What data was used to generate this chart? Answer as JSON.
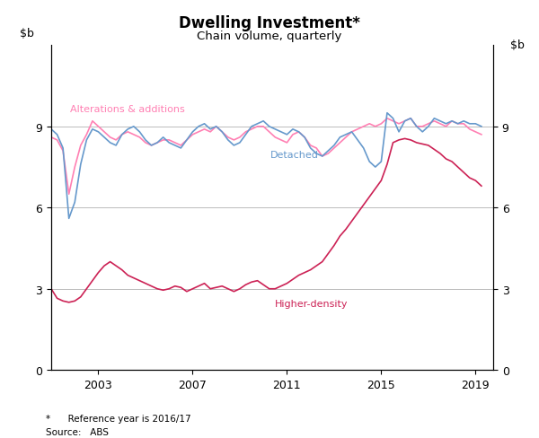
{
  "title": "Dwelling Investment*",
  "subtitle": "Chain volume, quarterly",
  "ylim": [
    0,
    12
  ],
  "yticks": [
    0,
    3,
    6,
    9
  ],
  "source_line1": "*      Reference year is 2016/17",
  "source_line2": "Source:   ABS",
  "xticks": [
    2003,
    2007,
    2011,
    2015,
    2019
  ],
  "xlim_start": 2001.0,
  "xlim_end": 2019.75,
  "alterations_color": "#ff80b3",
  "detached_color": "#6699cc",
  "higher_density_color": "#cc2255",
  "alterations_label": "Alterations & additions",
  "detached_label": "Detached",
  "higher_density_label": "Higher-density",
  "alterations_x": [
    2001.0,
    2001.25,
    2001.5,
    2001.75,
    2002.0,
    2002.25,
    2002.5,
    2002.75,
    2003.0,
    2003.25,
    2003.5,
    2003.75,
    2004.0,
    2004.25,
    2004.5,
    2004.75,
    2005.0,
    2005.25,
    2005.5,
    2005.75,
    2006.0,
    2006.25,
    2006.5,
    2006.75,
    2007.0,
    2007.25,
    2007.5,
    2007.75,
    2008.0,
    2008.25,
    2008.5,
    2008.75,
    2009.0,
    2009.25,
    2009.5,
    2009.75,
    2010.0,
    2010.25,
    2010.5,
    2010.75,
    2011.0,
    2011.25,
    2011.5,
    2011.75,
    2012.0,
    2012.25,
    2012.5,
    2012.75,
    2013.0,
    2013.25,
    2013.5,
    2013.75,
    2014.0,
    2014.25,
    2014.5,
    2014.75,
    2015.0,
    2015.25,
    2015.5,
    2015.75,
    2016.0,
    2016.25,
    2016.5,
    2016.75,
    2017.0,
    2017.25,
    2017.5,
    2017.75,
    2018.0,
    2018.25,
    2018.5,
    2018.75,
    2019.0,
    2019.25
  ],
  "alterations_y": [
    8.6,
    8.5,
    8.1,
    6.5,
    7.5,
    8.3,
    8.7,
    9.2,
    9.0,
    8.8,
    8.6,
    8.5,
    8.7,
    8.8,
    8.7,
    8.6,
    8.4,
    8.3,
    8.4,
    8.5,
    8.5,
    8.4,
    8.3,
    8.5,
    8.7,
    8.8,
    8.9,
    8.8,
    9.0,
    8.8,
    8.6,
    8.5,
    8.6,
    8.8,
    8.9,
    9.0,
    9.0,
    8.8,
    8.6,
    8.5,
    8.4,
    8.7,
    8.8,
    8.6,
    8.3,
    8.2,
    7.9,
    8.0,
    8.2,
    8.4,
    8.6,
    8.8,
    8.9,
    9.0,
    9.1,
    9.0,
    9.1,
    9.3,
    9.2,
    9.1,
    9.2,
    9.3,
    9.0,
    9.0,
    9.1,
    9.2,
    9.1,
    9.0,
    9.2,
    9.1,
    9.1,
    8.9,
    8.8,
    8.7
  ],
  "detached_x": [
    2001.0,
    2001.25,
    2001.5,
    2001.75,
    2002.0,
    2002.25,
    2002.5,
    2002.75,
    2003.0,
    2003.25,
    2003.5,
    2003.75,
    2004.0,
    2004.25,
    2004.5,
    2004.75,
    2005.0,
    2005.25,
    2005.5,
    2005.75,
    2006.0,
    2006.25,
    2006.5,
    2006.75,
    2007.0,
    2007.25,
    2007.5,
    2007.75,
    2008.0,
    2008.25,
    2008.5,
    2008.75,
    2009.0,
    2009.25,
    2009.5,
    2009.75,
    2010.0,
    2010.25,
    2010.5,
    2010.75,
    2011.0,
    2011.25,
    2011.5,
    2011.75,
    2012.0,
    2012.25,
    2012.5,
    2012.75,
    2013.0,
    2013.25,
    2013.5,
    2013.75,
    2014.0,
    2014.25,
    2014.5,
    2014.75,
    2015.0,
    2015.25,
    2015.5,
    2015.75,
    2016.0,
    2016.25,
    2016.5,
    2016.75,
    2017.0,
    2017.25,
    2017.5,
    2017.75,
    2018.0,
    2018.25,
    2018.5,
    2018.75,
    2019.0,
    2019.25
  ],
  "detached_y": [
    8.9,
    8.7,
    8.2,
    5.6,
    6.2,
    7.6,
    8.5,
    8.9,
    8.8,
    8.6,
    8.4,
    8.3,
    8.7,
    8.9,
    9.0,
    8.8,
    8.5,
    8.3,
    8.4,
    8.6,
    8.4,
    8.3,
    8.2,
    8.5,
    8.8,
    9.0,
    9.1,
    8.9,
    9.0,
    8.8,
    8.5,
    8.3,
    8.4,
    8.7,
    9.0,
    9.1,
    9.2,
    9.0,
    8.9,
    8.8,
    8.7,
    8.9,
    8.8,
    8.6,
    8.2,
    8.0,
    7.9,
    8.1,
    8.3,
    8.6,
    8.7,
    8.8,
    8.5,
    8.2,
    7.7,
    7.5,
    7.7,
    9.5,
    9.3,
    8.8,
    9.2,
    9.3,
    9.0,
    8.8,
    9.0,
    9.3,
    9.2,
    9.1,
    9.2,
    9.1,
    9.2,
    9.1,
    9.1,
    9.0
  ],
  "higher_density_x": [
    2001.0,
    2001.25,
    2001.5,
    2001.75,
    2002.0,
    2002.25,
    2002.5,
    2002.75,
    2003.0,
    2003.25,
    2003.5,
    2003.75,
    2004.0,
    2004.25,
    2004.5,
    2004.75,
    2005.0,
    2005.25,
    2005.5,
    2005.75,
    2006.0,
    2006.25,
    2006.5,
    2006.75,
    2007.0,
    2007.25,
    2007.5,
    2007.75,
    2008.0,
    2008.25,
    2008.5,
    2008.75,
    2009.0,
    2009.25,
    2009.5,
    2009.75,
    2010.0,
    2010.25,
    2010.5,
    2010.75,
    2011.0,
    2011.25,
    2011.5,
    2011.75,
    2012.0,
    2012.25,
    2012.5,
    2012.75,
    2013.0,
    2013.25,
    2013.5,
    2013.75,
    2014.0,
    2014.25,
    2014.5,
    2014.75,
    2015.0,
    2015.25,
    2015.5,
    2015.75,
    2016.0,
    2016.25,
    2016.5,
    2016.75,
    2017.0,
    2017.25,
    2017.5,
    2017.75,
    2018.0,
    2018.25,
    2018.5,
    2018.75,
    2019.0,
    2019.25
  ],
  "higher_density_y": [
    3.0,
    2.65,
    2.55,
    2.5,
    2.55,
    2.7,
    3.0,
    3.3,
    3.6,
    3.85,
    4.0,
    3.85,
    3.7,
    3.5,
    3.4,
    3.3,
    3.2,
    3.1,
    3.0,
    2.95,
    3.0,
    3.1,
    3.05,
    2.9,
    3.0,
    3.1,
    3.2,
    3.0,
    3.05,
    3.1,
    3.0,
    2.9,
    3.0,
    3.15,
    3.25,
    3.3,
    3.15,
    3.0,
    3.0,
    3.1,
    3.2,
    3.35,
    3.5,
    3.6,
    3.7,
    3.85,
    4.0,
    4.3,
    4.6,
    4.95,
    5.2,
    5.5,
    5.8,
    6.1,
    6.4,
    6.7,
    7.0,
    7.6,
    8.4,
    8.5,
    8.55,
    8.5,
    8.4,
    8.35,
    8.3,
    8.15,
    8.0,
    7.8,
    7.7,
    7.5,
    7.3,
    7.1,
    7.0,
    6.8
  ]
}
